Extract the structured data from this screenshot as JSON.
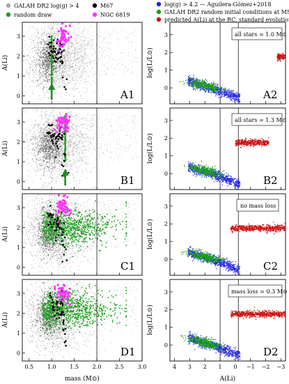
{
  "legend_left": [
    {
      "label": "GALAH DR2 log(g) > 4",
      "color": "#a8a8a8"
    },
    {
      "label": "random draw",
      "color": "#1aa01a"
    },
    {
      "label": "M67",
      "color": "#000000"
    },
    {
      "label": "NGC 6819",
      "color": "#ff33ff"
    }
  ],
  "legend_right": [
    {
      "label": "log(g) > 4.2 — Aguilera-Gómez+2018",
      "color": "#2424e6"
    },
    {
      "label": "GALAH DR2 random initial conditions at MS",
      "color": "#1aa01a"
    },
    {
      "label": "predicted A(Li) at the RC, standard evolution",
      "color": "#cc1010"
    }
  ],
  "colors": {
    "galah": "#a8a8a8",
    "galah_dense": "#3c3c3c",
    "random": "#1aa01a",
    "m67": "#000000",
    "ngc6819": "#ff33ff",
    "ms": "#2424e6",
    "rc": "#cc1010",
    "arrow": "#1e8a1e"
  },
  "left_axes": {
    "xlabel": "mass (M⊙)",
    "ylabel": "A(Li)",
    "xticks": [
      "0.5",
      "1.0",
      "1.5",
      "2.0",
      "2.5",
      "3.0"
    ],
    "yticks": [
      "0",
      "1",
      "2",
      "3"
    ],
    "xlim": [
      0.35,
      3.0
    ],
    "ylim": [
      -0.4,
      3.7
    ],
    "vline_x": 2.0
  },
  "right_axes": {
    "xlabel": "A(Li)",
    "ylabel": "log(L/L⊙)",
    "xticks": [
      "4",
      "3",
      "2",
      "1",
      "0",
      "−1",
      "−2",
      "−3"
    ],
    "yticks": [
      "0",
      "1",
      "2",
      "3"
    ],
    "xlim": [
      4.3,
      -3.3
    ],
    "ylim": [
      -0.9,
      3.7
    ],
    "vline_x": [
      1.0,
      -0.2
    ]
  },
  "panels_left": [
    {
      "label": "A1",
      "arrow_x": 1.0
    },
    {
      "label": "B1",
      "arrow_x": 1.3
    },
    {
      "label": "C1"
    },
    {
      "label": "D1"
    }
  ],
  "panels_right": [
    {
      "label": "A2",
      "note": "all stars = 1.0 M⊙"
    },
    {
      "label": "B2",
      "note": "all stars = 1.3 M⊙"
    },
    {
      "label": "C2",
      "note": "no mass loss"
    },
    {
      "label": "D2",
      "note": "mass loss = 0.3 M⊙"
    }
  ],
  "chart_data": [
    {
      "type": "scatter",
      "panel": "A1",
      "series": [
        {
          "name": "GALAH DR2 log(g) > 4",
          "x_range": [
            0.55,
            2.9
          ],
          "y_range": [
            0.0,
            3.5
          ]
        },
        {
          "name": "random draw",
          "x_range": [
            1.0,
            1.02
          ],
          "y_range": [
            0.5,
            3.0
          ]
        },
        {
          "name": "M67",
          "x_range": [
            0.85,
            1.35
          ],
          "y_range": [
            0.0,
            3.2
          ]
        },
        {
          "name": "NGC 6819",
          "x_range": [
            1.15,
            1.45
          ],
          "y_range": [
            2.6,
            3.6
          ]
        }
      ]
    },
    {
      "type": "scatter",
      "panel": "B1",
      "series": [
        {
          "name": "random draw",
          "x_range": [
            1.29,
            1.31
          ],
          "y_range": [
            1.0,
            3.4
          ]
        }
      ]
    },
    {
      "type": "scatter",
      "panel": "C1",
      "series": [
        {
          "name": "random draw",
          "x_range": [
            0.65,
            2.6
          ],
          "y_range": [
            1.0,
            3.2
          ]
        }
      ]
    },
    {
      "type": "scatter",
      "panel": "D1",
      "series": [
        {
          "name": "random draw",
          "x_range": [
            0.8,
            2.6
          ],
          "y_range": [
            1.2,
            3.2
          ]
        }
      ]
    },
    {
      "type": "scatter",
      "panel": "A2",
      "series": [
        {
          "name": "log(g) > 4.2 — Aguilera-Gómez+2018",
          "x_range": [
            -0.3,
            3.1
          ],
          "y_range": [
            -0.6,
            0.5
          ]
        },
        {
          "name": "GALAH DR2 random initial conditions at MS",
          "x_range": [
            0.8,
            2.9
          ],
          "y_range": [
            -0.1,
            0.6
          ]
        },
        {
          "name": "predicted A(Li) at the RC, standard evolution",
          "x_range": [
            -3.3,
            -2.7
          ],
          "y_range": [
            1.55,
            1.9
          ]
        }
      ]
    },
    {
      "type": "scatter",
      "panel": "B2",
      "series": [
        {
          "name": "predicted A(Li) at the RC, standard evolution",
          "x_range": [
            -2.2,
            0.0
          ],
          "y_range": [
            1.6,
            1.95
          ]
        }
      ]
    },
    {
      "type": "scatter",
      "panel": "C2",
      "series": [
        {
          "name": "predicted A(Li) at the RC, standard evolution",
          "x_range": [
            -3.3,
            0.2
          ],
          "y_range": [
            1.5,
            2.0
          ]
        }
      ]
    },
    {
      "type": "scatter",
      "panel": "D2",
      "series": [
        {
          "name": "predicted A(Li) at the RC, standard evolution",
          "x_range": [
            -3.3,
            0.4
          ],
          "y_range": [
            1.5,
            2.0
          ]
        }
      ]
    }
  ]
}
